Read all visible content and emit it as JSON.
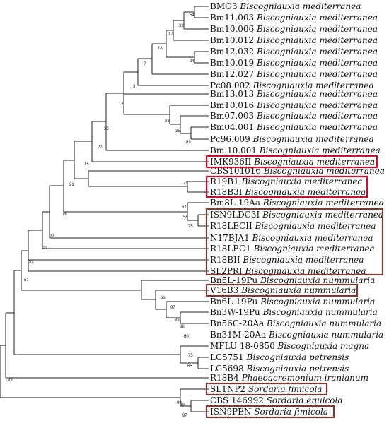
{
  "taxa": [
    {
      "code": "BMO3",
      "species": "Biscogniauxia mediterranea"
    },
    {
      "code": "Bm11.003",
      "species": "Biscogniauxia mediterranea"
    },
    {
      "code": "Bm10.006",
      "species": "Biscogniauxia mediterranea"
    },
    {
      "code": "Bm10.012",
      "species": "Biscogniauxia mediterranea"
    },
    {
      "code": "Bm12.032",
      "species": "Biscogniauxia mediterranea"
    },
    {
      "code": "Bm10.019",
      "species": "Biscogniauxia mediterranea"
    },
    {
      "code": "Bm12.027",
      "species": "Biscogniauxia mediterranea"
    },
    {
      "code": "Pc08.002",
      "species": "Biscogniauxia mediterranea"
    },
    {
      "code": "Bm13.013",
      "species": "Biscogniauxia mediterranea"
    },
    {
      "code": "Bm10.016",
      "species": "Biscogniauxia mediterranea"
    },
    {
      "code": "Bm07.003",
      "species": "Biscogniauxia mediterranea"
    },
    {
      "code": "Bm04.001",
      "species": "Biscogniauxia mediterranea"
    },
    {
      "code": "Pc96.009",
      "species": "Biscogniauxia mediterranea"
    },
    {
      "code": "Bm.10.001",
      "species": "Biscogniauxia mediterranea"
    },
    {
      "code": "IMK936II",
      "species": "Biscogniauxia mediterranea"
    },
    {
      "code": "CBS101016",
      "species": "Biscogniauxia mediterranea"
    },
    {
      "code": "R19B1",
      "species": "Biscogniauxia mediterranea"
    },
    {
      "code": "R18B3I",
      "species": "Biscogniauxia mediterranea"
    },
    {
      "code": "Bm8L-19Aa",
      "species": "Biscogniauxia mediterranea"
    },
    {
      "code": "ISN9LDC3I",
      "species": "Biscogniauxia mediterranea"
    },
    {
      "code": "R18LECII",
      "species": "Biscogniauxia mediterranea"
    },
    {
      "code": "N17BJA1",
      "species": "Biscogniauxia mediterranea"
    },
    {
      "code": "R18LEC1",
      "species": "Biscogniauxia mediterranea"
    },
    {
      "code": "R18BII",
      "species": "Biscogniauxia mediterranea"
    },
    {
      "code": "SL2PRI",
      "species": "Biscogniauxia mediterranea"
    },
    {
      "code": "Bn5L-19Pu",
      "species": "Biscogniauxia nummularia"
    },
    {
      "code": "V16B3",
      "species": "Biscogniauxia nummularia"
    },
    {
      "code": "Bn6L-19Pu",
      "species": "Biscogniauxia nummularia"
    },
    {
      "code": "Bn3W-19Pu",
      "species": "Biscogniauxia nummularia"
    },
    {
      "code": "Bn56C-20Aa",
      "species": "Biscogniauxia nummularia"
    },
    {
      "code": "Bn31M-20Aa",
      "species": "Biscogniauxia nummularia"
    },
    {
      "code": "MFLU 18-0850",
      "species": "Biscogniauxia magna"
    },
    {
      "code": "LC5751",
      "species": "Biscogniauxia petrensis"
    },
    {
      "code": "LC5698",
      "species": "Biscogniauxia petrensis"
    },
    {
      "code": "R18B4",
      "species": "Phaeoacremonium iranianum"
    },
    {
      "code": "SL1NP2",
      "species": "Sordaria fimicola"
    },
    {
      "code": "CBS 146992",
      "species": "Sordaria equicola"
    },
    {
      "code": "ISN9PEN",
      "species": "Sordaria fimicola"
    }
  ],
  "support_values": [
    "54",
    "32",
    "17",
    "18",
    "34",
    "7",
    "3",
    "17",
    "38",
    "35",
    "89",
    "33",
    "22",
    "15",
    "75",
    "21",
    "67",
    "56",
    "75",
    "16",
    "27",
    "72",
    "99",
    "51",
    "99",
    "97",
    "99",
    "86",
    "60",
    "99",
    "75",
    "65",
    "99",
    "99",
    "97"
  ],
  "colors": {
    "highlight_red": "#c8102e",
    "highlight_brown": "#7a3b33",
    "branch": "#222222"
  }
}
